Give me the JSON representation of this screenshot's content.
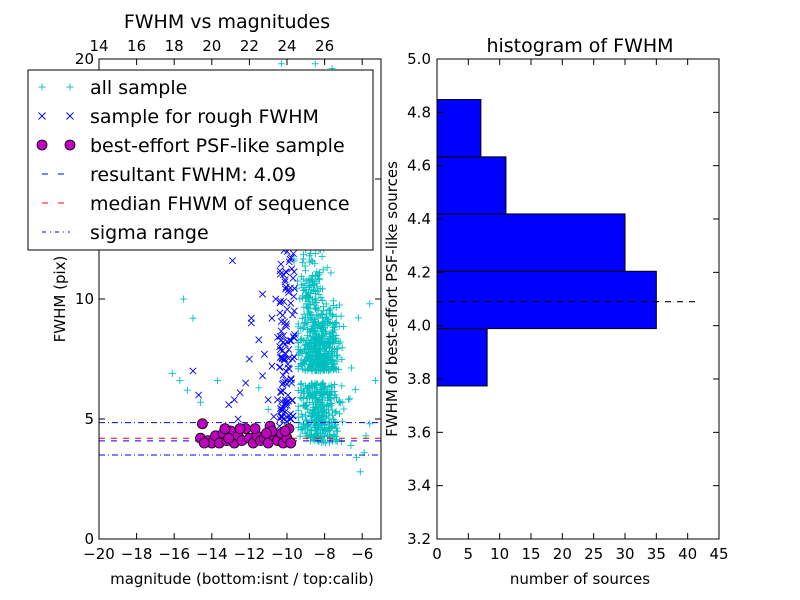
{
  "chart_data": [
    {
      "type": "scatter",
      "title": "FWHM vs magnitudes",
      "xlabel": "magnitude (bottom:isnt / top:calib)",
      "ylabel": "FWHM (pix)",
      "xlim": [
        -20,
        -5
      ],
      "ylim": [
        0,
        20
      ],
      "x_ticks": [
        "−20",
        "−18",
        "−16",
        "−14",
        "−12",
        "−10",
        "−8",
        "−6"
      ],
      "y_ticks": [
        "0",
        "5",
        "10",
        "15",
        "20"
      ],
      "top_axis_ticks": [
        "14",
        "16",
        "18",
        "20",
        "22",
        "24",
        "26"
      ],
      "top_axis_offset": 34,
      "legend_location": "upper left",
      "legend": [
        {
          "label": "all sample",
          "marker": "plus",
          "color": "#00bfbf"
        },
        {
          "label": "sample for rough FWHM",
          "marker": "x",
          "color": "#0000ff"
        },
        {
          "label": "best-effort PSF-like sample",
          "marker": "circle",
          "color": "#bf00bf"
        },
        {
          "label": "resultant FWHM: 4.09",
          "marker": "dashed-line",
          "color": "#0000ff"
        },
        {
          "label": "median FHWM of sequence",
          "marker": "dashed-line",
          "color": "#ff0000"
        },
        {
          "label": "sigma range",
          "marker": "dashdot-line",
          "color": "#0000ff"
        }
      ],
      "lines": {
        "resultant_fwhm": 4.09,
        "median_fwhm": 4.2,
        "sigma_range": [
          3.5,
          4.85
        ]
      },
      "series": [
        {
          "name": "all sample",
          "marker": "plus",
          "color": "#00bfbf",
          "points": [
            [
              -15.5,
              10.0
            ],
            [
              -15.0,
              9.2
            ],
            [
              -16.1,
              6.9
            ],
            [
              -15.7,
              6.6
            ],
            [
              -15.3,
              6.2
            ],
            [
              -14.6,
              5.7
            ],
            [
              -13.7,
              6.6
            ],
            [
              -11.5,
              6.3
            ],
            [
              -11.0,
              5.4
            ],
            [
              -5.6,
              9.8
            ],
            [
              -5.3,
              6.6
            ],
            [
              -5.6,
              4.8
            ],
            [
              -5.8,
              4.3
            ],
            [
              -5.9,
              3.6
            ],
            [
              -6.1,
              2.8
            ],
            [
              -6.3,
              3.4
            ],
            [
              -6.6,
              3.9
            ],
            [
              -8.5,
              19.8
            ],
            [
              -8.0,
              20.0
            ],
            [
              -7.6,
              19.6
            ],
            [
              -10.3,
              19.8
            ]
          ],
          "cloud": {
            "x_range": [
              -9.4,
              -6.0
            ],
            "y_range": [
              3.6,
              17.5
            ],
            "count": 900,
            "x_center": -8.3,
            "y_center": 7.0
          }
        },
        {
          "name": "sample for rough FWHM",
          "marker": "x",
          "color": "#0000ff",
          "points": [
            [
              -14.7,
              6.0
            ],
            [
              -15.0,
              7.0
            ],
            [
              -12.9,
              11.6
            ],
            [
              -12.6,
              12.3
            ],
            [
              -11.9,
              9.2
            ],
            [
              -11.9,
              9.0
            ],
            [
              -11.6,
              12.2
            ],
            [
              -11.3,
              10.2
            ],
            [
              -11.2,
              7.7
            ],
            [
              -11.5,
              8.3
            ],
            [
              -12.0,
              7.5
            ],
            [
              -12.2,
              6.5
            ],
            [
              -12.5,
              6.1
            ],
            [
              -12.8,
              5.8
            ],
            [
              -13.1,
              5.6
            ],
            [
              -10.6,
              10.0
            ],
            [
              -10.8,
              9.2
            ],
            [
              -10.5,
              8.4
            ],
            [
              -10.3,
              7.6
            ],
            [
              -10.1,
              8.9
            ],
            [
              -10.8,
              7.2
            ],
            [
              -10.2,
              6.5
            ],
            [
              -10.5,
              5.8
            ],
            [
              -10.1,
              5.3
            ],
            [
              -10.0,
              4.9
            ],
            [
              -11.3,
              6.8
            ],
            [
              -11.0,
              5.8
            ],
            [
              -10.7,
              5.1
            ],
            [
              -10.4,
              4.7
            ],
            [
              -12.6,
              5.0
            ]
          ],
          "cloud": {
            "x_range": [
              -10.4,
              -9.6
            ],
            "y_range": [
              5.0,
              12.2
            ],
            "count": 110,
            "x_center": -9.9,
            "y_center": 8.0
          }
        },
        {
          "name": "best-effort PSF-like sample",
          "marker": "circle",
          "color": "#bf00bf",
          "points": [
            [
              -14.5,
              4.8
            ],
            [
              -14.6,
              4.2
            ],
            [
              -14.2,
              4.1
            ],
            [
              -14.0,
              4.0
            ],
            [
              -13.8,
              4.3
            ],
            [
              -13.6,
              4.0
            ],
            [
              -13.4,
              4.4
            ],
            [
              -13.2,
              4.1
            ],
            [
              -13.0,
              4.5
            ],
            [
              -12.8,
              4.0
            ],
            [
              -12.6,
              4.3
            ],
            [
              -12.4,
              4.1
            ],
            [
              -12.2,
              4.6
            ],
            [
              -12.0,
              4.2
            ],
            [
              -11.8,
              4.0
            ],
            [
              -11.6,
              4.3
            ],
            [
              -11.4,
              4.1
            ],
            [
              -11.2,
              4.2
            ],
            [
              -11.0,
              4.0
            ],
            [
              -10.9,
              4.7
            ],
            [
              -10.7,
              4.3
            ],
            [
              -10.5,
              4.1
            ],
            [
              -10.3,
              4.4
            ],
            [
              -10.2,
              4.0
            ],
            [
              -10.0,
              4.2
            ],
            [
              -9.9,
              4.6
            ],
            [
              -9.8,
              4.0
            ],
            [
              -13.1,
              4.2
            ],
            [
              -12.5,
              4.6
            ],
            [
              -11.7,
              4.6
            ],
            [
              -10.8,
              4.5
            ],
            [
              -10.1,
              4.5
            ],
            [
              -14.4,
              4.0
            ],
            [
              -13.3,
              4.6
            ],
            [
              -11.1,
              4.4
            ]
          ]
        }
      ]
    },
    {
      "type": "bar",
      "orientation": "horizontal",
      "title": "histogram of FWHM",
      "xlabel": "number of sources",
      "ylabel": "FWHM of best-effort PSF-like sources",
      "xlim": [
        0,
        45
      ],
      "ylim": [
        3.2,
        5.0
      ],
      "x_ticks": [
        "0",
        "5",
        "10",
        "15",
        "20",
        "25",
        "30",
        "35",
        "40",
        "45"
      ],
      "y_ticks": [
        "3.2",
        "3.4",
        "3.6",
        "3.8",
        "4.0",
        "4.2",
        "4.4",
        "4.6",
        "4.8",
        "5.0"
      ],
      "bin_edges": [
        3.774,
        3.989,
        4.204,
        4.419,
        4.633,
        4.848
      ],
      "counts": [
        8,
        35,
        30,
        11,
        7
      ],
      "bar_color": "#0000ff",
      "reference_line": {
        "value": 4.09,
        "style": "dashed",
        "color": "#000000",
        "x_extent": [
          0,
          41.5
        ]
      }
    }
  ]
}
